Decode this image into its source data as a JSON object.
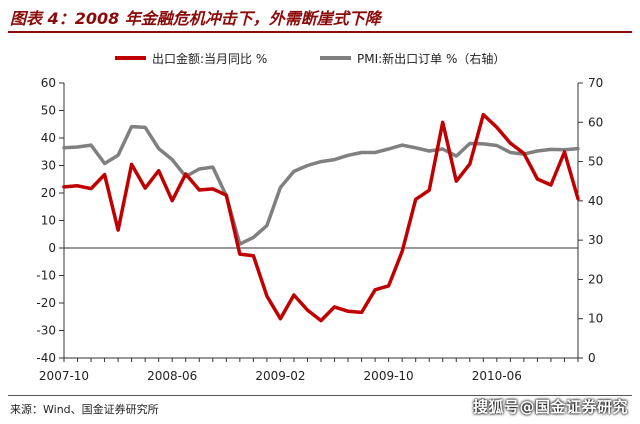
{
  "header": {
    "title": "图表 4：2008 年金融危机冲击下，外需断崖式下降"
  },
  "footer": {
    "source": "来源：Wind、国金证券研究所",
    "watermark": "搜狐号@国金证券研究"
  },
  "chart_data": {
    "type": "line",
    "title": "图表 4：2008 年金融危机冲击下，外需断崖式下降",
    "x_ticks": [
      "2007-10",
      "2008-06",
      "2009-02",
      "2009-10",
      "2010-06"
    ],
    "y_left": {
      "range": [
        -40,
        60
      ],
      "ticks": [
        60,
        50,
        40,
        30,
        20,
        10,
        0,
        -10,
        -20,
        -30,
        -40
      ]
    },
    "y_right": {
      "range": [
        0,
        70
      ],
      "ticks": [
        70,
        60,
        50,
        40,
        30,
        20,
        10,
        0
      ]
    },
    "grid": false,
    "legend_position": "top-center",
    "months": [
      "2007-10",
      "2007-11",
      "2007-12",
      "2008-01",
      "2008-02",
      "2008-03",
      "2008-04",
      "2008-05",
      "2008-06",
      "2008-07",
      "2008-08",
      "2008-09",
      "2008-10",
      "2008-11",
      "2008-12",
      "2009-01",
      "2009-02",
      "2009-03",
      "2009-04",
      "2009-05",
      "2009-06",
      "2009-07",
      "2009-08",
      "2009-09",
      "2009-10",
      "2009-11",
      "2009-12",
      "2010-01",
      "2010-02",
      "2010-03",
      "2010-04",
      "2010-05",
      "2010-06",
      "2010-07",
      "2010-08",
      "2010-09",
      "2010-10",
      "2010-11",
      "2010-12"
    ],
    "series": [
      {
        "name": "出口金额:当月同比 %",
        "axis": "left",
        "color": "#c00000",
        "values": [
          22.2,
          22.6,
          21.6,
          26.7,
          6.5,
          30.4,
          21.8,
          28.1,
          17.2,
          26.9,
          21.1,
          21.5,
          19.2,
          -2.2,
          -2.8,
          -17.5,
          -25.7,
          -17.1,
          -22.6,
          -26.4,
          -21.4,
          -23.0,
          -23.4,
          -15.2,
          -13.8,
          -1.2,
          17.7,
          21.0,
          45.7,
          24.3,
          30.5,
          48.5,
          43.9,
          38.1,
          34.4,
          25.1,
          22.9,
          34.9,
          17.9
        ]
      },
      {
        "name": "PMI:新出口订单 %（右轴）",
        "axis": "right",
        "color": "#808080",
        "values": [
          53.5,
          53.7,
          54.2,
          49.5,
          51.6,
          58.9,
          58.7,
          53.3,
          50.5,
          46.2,
          48.1,
          48.6,
          41.3,
          29.0,
          30.7,
          33.7,
          43.4,
          47.5,
          49.0,
          50.0,
          50.5,
          51.6,
          52.3,
          52.3,
          53.2,
          54.2,
          53.5,
          52.7,
          53.2,
          51.4,
          54.6,
          54.5,
          54.1,
          52.3,
          51.9,
          52.7,
          53.1,
          53.0,
          53.3
        ]
      }
    ]
  }
}
